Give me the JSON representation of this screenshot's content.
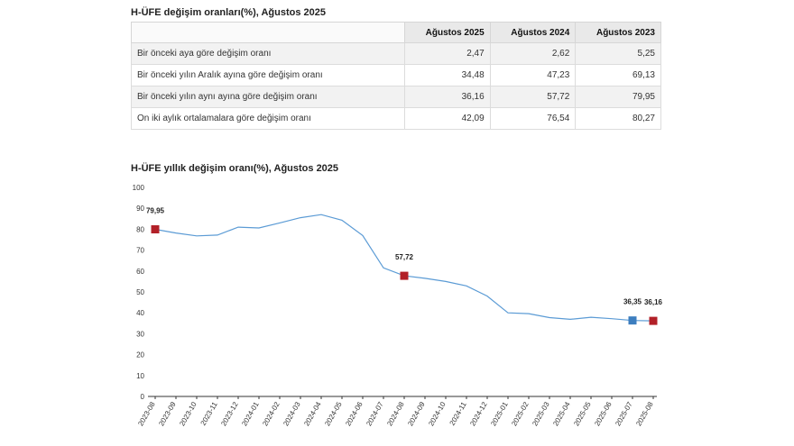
{
  "table": {
    "title": "H-ÜFE değişim oranları(%), Ağustos 2025",
    "columns": [
      "Ağustos 2025",
      "Ağustos 2024",
      "Ağustos 2023"
    ],
    "rows": [
      {
        "label": "Bir önceki aya göre değişim oranı",
        "values": [
          "2,47",
          "2,62",
          "5,25"
        ]
      },
      {
        "label": "Bir önceki yılın Aralık ayına göre değişim oranı",
        "values": [
          "34,48",
          "47,23",
          "69,13"
        ]
      },
      {
        "label": "Bir önceki yılın aynı ayına göre değişim oranı",
        "values": [
          "36,16",
          "57,72",
          "79,95"
        ]
      },
      {
        "label": "On iki aylık ortalamalara göre değişim oranı",
        "values": [
          "42,09",
          "76,54",
          "80,27"
        ]
      }
    ]
  },
  "chart_data": {
    "type": "line",
    "title": "H-ÜFE yıllık değişim oranı(%), Ağustos 2025",
    "ylim": [
      0,
      100
    ],
    "yticks": [
      0,
      10,
      20,
      30,
      40,
      50,
      60,
      70,
      80,
      90,
      100
    ],
    "grid": false,
    "x": [
      "2023-08",
      "2023-09",
      "2023-10",
      "2023-11",
      "2023-12",
      "2024-01",
      "2024-02",
      "2024-03",
      "2024-04",
      "2024-05",
      "2024-06",
      "2024-07",
      "2024-08",
      "2024-09",
      "2024-10",
      "2024-11",
      "2024-12",
      "2025-01",
      "2025-02",
      "2025-03",
      "2025-04",
      "2025-05",
      "2025-06",
      "2025-07",
      "2025-08"
    ],
    "series": [
      {
        "values": [
          79.95,
          78.2,
          76.8,
          77.2,
          81.0,
          80.6,
          83.0,
          85.5,
          87.0,
          84.3,
          77.0,
          61.5,
          57.72,
          56.5,
          55.0,
          52.9,
          48.0,
          40.0,
          39.6,
          37.7,
          36.9,
          37.9,
          37.2,
          36.35,
          36.16
        ]
      }
    ],
    "highlights": [
      {
        "x": "2023-08",
        "value": 79.95,
        "label": "79,95",
        "color": "#b22028"
      },
      {
        "x": "2024-08",
        "value": 57.72,
        "label": "57,72",
        "color": "#b22028"
      },
      {
        "x": "2025-07",
        "value": 36.35,
        "label": "36,35",
        "color": "#3d7ebf"
      },
      {
        "x": "2025-08",
        "value": 36.16,
        "label": "36,16",
        "color": "#b22028"
      }
    ],
    "line_color": "#5b9bd5",
    "axis_color": "#333333"
  }
}
